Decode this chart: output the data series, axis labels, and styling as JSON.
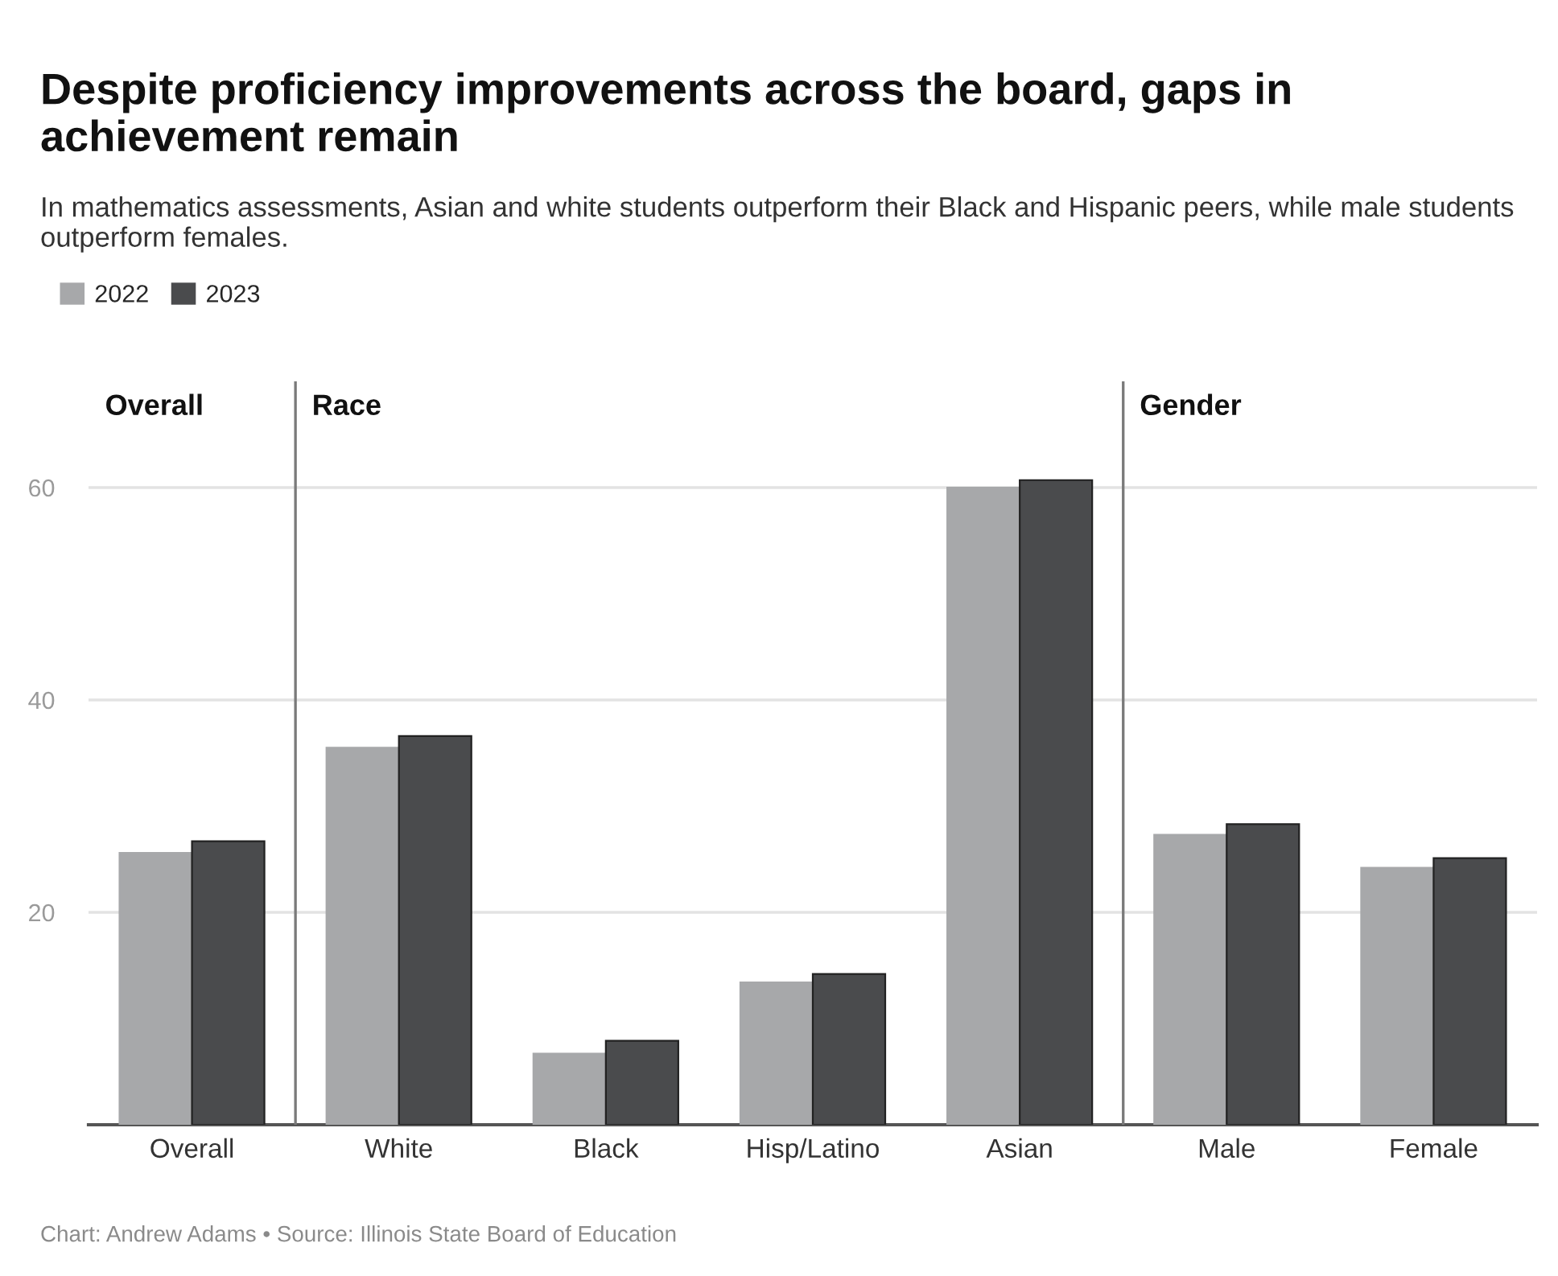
{
  "chart_data": {
    "type": "bar",
    "title": "Despite proficiency improvements across the board, gaps in achievement remain",
    "subtitle": "In mathematics assessments, Asian and white students outperform their Black and Hispanic peers, while male students outperform females.",
    "categories": [
      "Overall",
      "White",
      "Black",
      "Hisp/Latino",
      "Asian",
      "Male",
      "Female"
    ],
    "series": [
      {
        "name": "2022",
        "color": "#a7a8aa",
        "values": [
          25.6,
          35.5,
          6.7,
          13.4,
          60.0,
          27.3,
          24.2
        ]
      },
      {
        "name": "2023",
        "color": "#4a4b4d",
        "values": [
          26.7,
          36.6,
          7.9,
          14.2,
          60.7,
          28.3,
          25.1
        ]
      }
    ],
    "ylim": [
      0,
      70
    ],
    "yticks": [
      20,
      40,
      60
    ],
    "grid": "y",
    "legend": "top left",
    "annotations": [
      "Overall",
      "Race",
      "Gender",
      "Chart: Andrew Adams • Source: Illinois State Board of Education"
    ]
  }
}
